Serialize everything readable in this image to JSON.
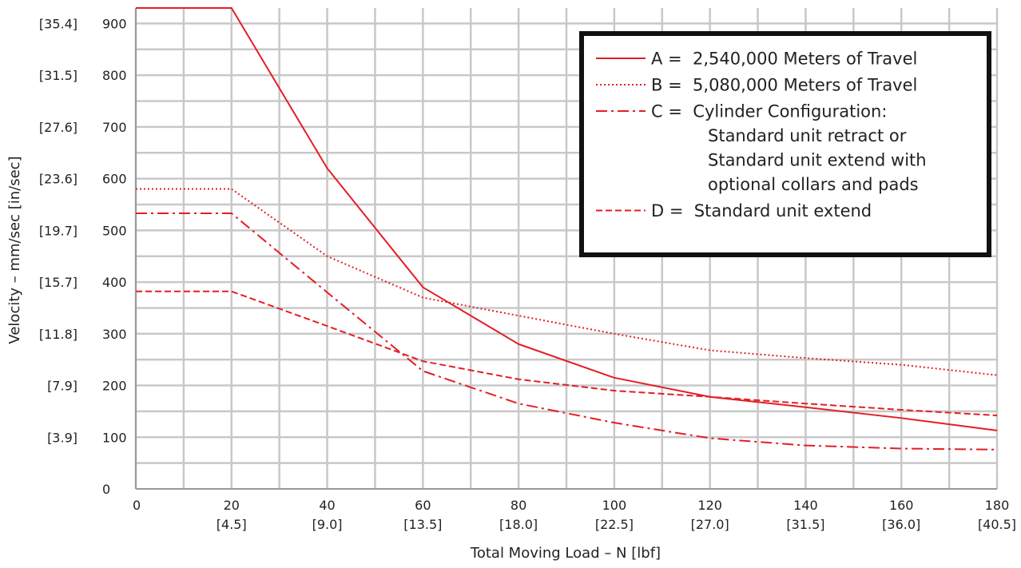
{
  "chart_data": {
    "type": "line",
    "title": "",
    "xlabel": "Total Moving Load – N [lbf]",
    "ylabel": "Velocity – mm/sec [in/sec]",
    "xlim": [
      0,
      180
    ],
    "ylim": [
      0,
      930
    ],
    "grid": true,
    "legend_position": "top-right",
    "x_ticks": [
      {
        "value": 0,
        "label": "0",
        "alt": ""
      },
      {
        "value": 20,
        "label": "20",
        "alt": "[4.5]"
      },
      {
        "value": 40,
        "label": "40",
        "alt": "[9.0]"
      },
      {
        "value": 60,
        "label": "60",
        "alt": "[13.5]"
      },
      {
        "value": 80,
        "label": "80",
        "alt": "[18.0]"
      },
      {
        "value": 100,
        "label": "100",
        "alt": "[22.5]"
      },
      {
        "value": 120,
        "label": "120",
        "alt": "[27.0]"
      },
      {
        "value": 140,
        "label": "140",
        "alt": "[31.5]"
      },
      {
        "value": 160,
        "label": "160",
        "alt": "[36.0]"
      },
      {
        "value": 180,
        "label": "180",
        "alt": "[40.5]"
      }
    ],
    "y_ticks": [
      {
        "value": 0,
        "label": "0",
        "alt": ""
      },
      {
        "value": 100,
        "label": "100",
        "alt": "[3.9]"
      },
      {
        "value": 200,
        "label": "200",
        "alt": "[7.9]"
      },
      {
        "value": 300,
        "label": "300",
        "alt": "[11.8]"
      },
      {
        "value": 400,
        "label": "400",
        "alt": "[15.7]"
      },
      {
        "value": 500,
        "label": "500",
        "alt": "[19.7]"
      },
      {
        "value": 600,
        "label": "600",
        "alt": "[23.6]"
      },
      {
        "value": 700,
        "label": "700",
        "alt": "[27.6]"
      },
      {
        "value": 800,
        "label": "800",
        "alt": "[31.5]"
      },
      {
        "value": 900,
        "label": "900",
        "alt": "[35.4]"
      }
    ],
    "line_color": "#e31e24",
    "series": [
      {
        "key": "A",
        "style": "solid",
        "legend_lines": [
          "A =  2,540,000 Meters of Travel"
        ],
        "points": [
          [
            0,
            930
          ],
          [
            20,
            930
          ],
          [
            40,
            620
          ],
          [
            60,
            390
          ],
          [
            80,
            280
          ],
          [
            100,
            215
          ],
          [
            120,
            178
          ],
          [
            140,
            158
          ],
          [
            160,
            137
          ],
          [
            180,
            113
          ]
        ]
      },
      {
        "key": "B",
        "style": "dotted",
        "legend_lines": [
          "B =  5,080,000 Meters of Travel"
        ],
        "points": [
          [
            0,
            580
          ],
          [
            20,
            580
          ],
          [
            40,
            450
          ],
          [
            60,
            370
          ],
          [
            80,
            335
          ],
          [
            100,
            300
          ],
          [
            120,
            268
          ],
          [
            140,
            253
          ],
          [
            160,
            240
          ],
          [
            180,
            220
          ]
        ]
      },
      {
        "key": "C",
        "style": "dashdot",
        "legend_lines": [
          "C =  Cylinder Configuration:",
          "Standard unit retract or",
          "Standard unit extend with",
          "optional collars and pads"
        ],
        "points": [
          [
            0,
            533
          ],
          [
            20,
            533
          ],
          [
            40,
            380
          ],
          [
            60,
            228
          ],
          [
            80,
            165
          ],
          [
            100,
            128
          ],
          [
            120,
            98
          ],
          [
            140,
            84
          ],
          [
            160,
            78
          ],
          [
            180,
            76
          ]
        ]
      },
      {
        "key": "D",
        "style": "dashed",
        "legend_lines": [
          "D =  Standard unit extend"
        ],
        "points": [
          [
            0,
            382
          ],
          [
            20,
            382
          ],
          [
            40,
            315
          ],
          [
            60,
            247
          ],
          [
            80,
            212
          ],
          [
            100,
            190
          ],
          [
            120,
            178
          ],
          [
            140,
            165
          ],
          [
            160,
            153
          ],
          [
            180,
            142
          ]
        ]
      }
    ]
  }
}
